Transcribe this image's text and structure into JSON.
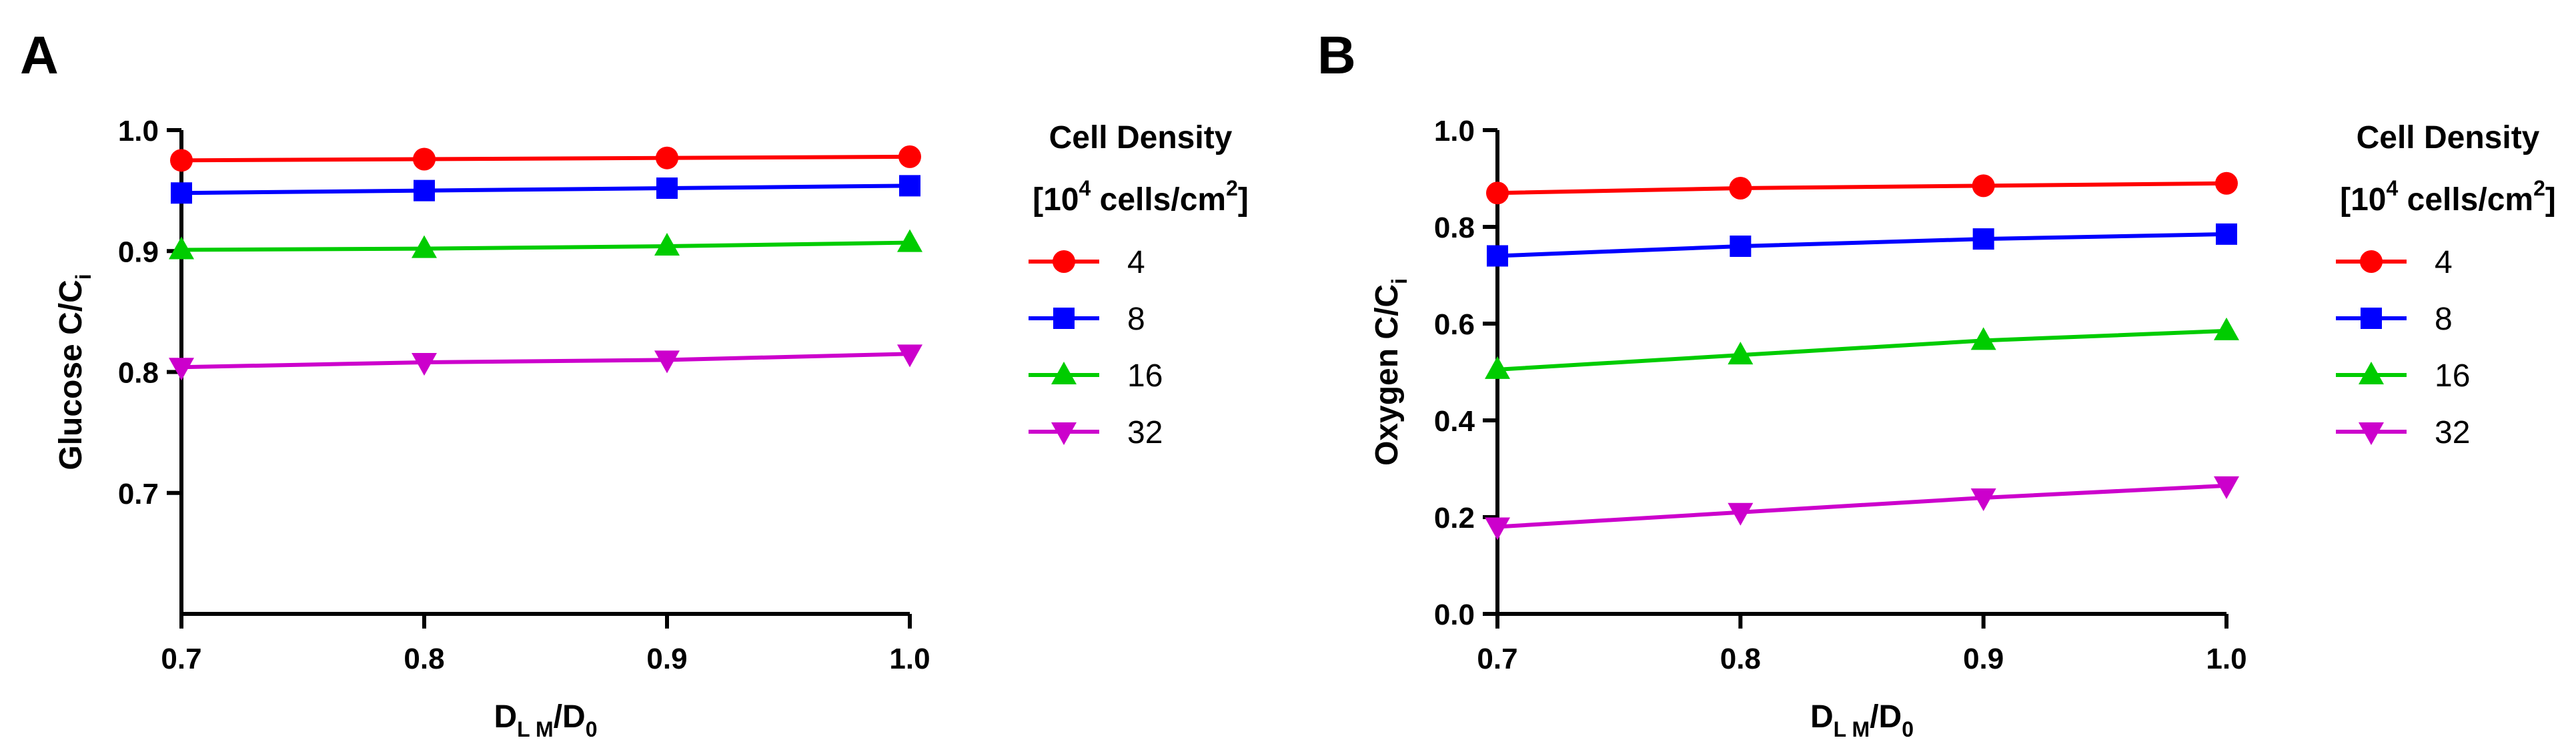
{
  "chart_data": [
    {
      "panel": "A",
      "type": "line",
      "xlabel_main": "D",
      "xlabel_sub": "L M",
      "xlabel_tail": "/D",
      "xlabel_tail_sub": "0",
      "ylabel_main": "Glucose C/C",
      "ylabel_sub": "i",
      "x": [
        0.7,
        0.8,
        0.9,
        1.0
      ],
      "xlim": [
        0.7,
        1.0
      ],
      "ylim": [
        0.6,
        1.0
      ],
      "x_ticks": [
        0.7,
        0.8,
        0.9,
        1.0
      ],
      "x_tick_labels": [
        "0.7",
        "0.8",
        "0.9",
        "1.0"
      ],
      "y_ticks": [
        0.7,
        0.8,
        0.9,
        1.0
      ],
      "y_tick_labels": [
        "0.7",
        "0.8",
        "0.9",
        "1.0"
      ],
      "legend_title_line1": "Cell Density",
      "legend_title_line2_pre": "[10",
      "legend_title_line2_sup1": "4",
      "legend_title_line2_mid": " cells/cm",
      "legend_title_line2_sup2": "2",
      "legend_title_line2_post": "]",
      "series": [
        {
          "name": "4",
          "color": "#ff0000",
          "marker": "circle",
          "values": [
            0.975,
            0.976,
            0.977,
            0.978
          ]
        },
        {
          "name": "8",
          "color": "#0000ff",
          "marker": "square",
          "values": [
            0.948,
            0.95,
            0.952,
            0.954
          ]
        },
        {
          "name": "16",
          "color": "#00cc00",
          "marker": "triangle-up",
          "values": [
            0.901,
            0.902,
            0.904,
            0.907
          ]
        },
        {
          "name": "32",
          "color": "#cc00cc",
          "marker": "triangle-down",
          "values": [
            0.804,
            0.808,
            0.81,
            0.815
          ]
        }
      ]
    },
    {
      "panel": "B",
      "type": "line",
      "xlabel_main": "D",
      "xlabel_sub": "L M",
      "xlabel_tail": "/D",
      "xlabel_tail_sub": "0",
      "ylabel_main": "Oxygen C/C",
      "ylabel_sub": "i",
      "x": [
        0.7,
        0.8,
        0.9,
        1.0
      ],
      "xlim": [
        0.7,
        1.0
      ],
      "ylim": [
        0.0,
        1.0
      ],
      "x_ticks": [
        0.7,
        0.8,
        0.9,
        1.0
      ],
      "x_tick_labels": [
        "0.7",
        "0.8",
        "0.9",
        "1.0"
      ],
      "y_ticks": [
        0.0,
        0.2,
        0.4,
        0.6,
        0.8,
        1.0
      ],
      "y_tick_labels": [
        "0.0",
        "0.2",
        "0.4",
        "0.6",
        "0.8",
        "1.0"
      ],
      "legend_title_line1": "Cell Density",
      "legend_title_line2_pre": "[10",
      "legend_title_line2_sup1": "4",
      "legend_title_line2_mid": " cells/cm",
      "legend_title_line2_sup2": "2",
      "legend_title_line2_post": "]",
      "series": [
        {
          "name": "4",
          "color": "#ff0000",
          "marker": "circle",
          "values": [
            0.87,
            0.88,
            0.885,
            0.89
          ]
        },
        {
          "name": "8",
          "color": "#0000ff",
          "marker": "square",
          "values": [
            0.74,
            0.76,
            0.775,
            0.785
          ]
        },
        {
          "name": "16",
          "color": "#00cc00",
          "marker": "triangle-up",
          "values": [
            0.505,
            0.535,
            0.565,
            0.585
          ]
        },
        {
          "name": "32",
          "color": "#cc00cc",
          "marker": "triangle-down",
          "values": [
            0.18,
            0.21,
            0.24,
            0.265
          ]
        }
      ]
    }
  ]
}
